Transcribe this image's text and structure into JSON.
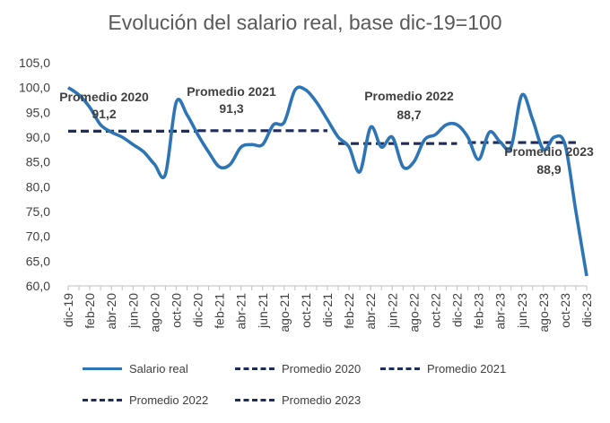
{
  "chart_data": {
    "type": "line",
    "title": "Evolución del salario real, base dic-19=100",
    "ylim": [
      60,
      105
    ],
    "yticks": [
      "60,0",
      "65,0",
      "70,0",
      "75,0",
      "80,0",
      "85,0",
      "90,0",
      "95,0",
      "100,0",
      "105,0"
    ],
    "xticks": [
      "dic-19",
      "feb-20",
      "abr-20",
      "jun-20",
      "ago-20",
      "oct-20",
      "dic-20",
      "feb-21",
      "abr-21",
      "jun-21",
      "ago-21",
      "oct-21",
      "dic-21",
      "feb-22",
      "abr-22",
      "jun-22",
      "ago-22",
      "oct-22",
      "dic-22",
      "feb-23",
      "abr-23",
      "jun-23",
      "ago-23",
      "oct-23",
      "dic-23"
    ],
    "x": [
      "dic-19",
      "ene-20",
      "feb-20",
      "mar-20",
      "abr-20",
      "may-20",
      "jun-20",
      "jul-20",
      "ago-20",
      "sep-20",
      "oct-20",
      "nov-20",
      "dic-20",
      "ene-21",
      "feb-21",
      "mar-21",
      "abr-21",
      "may-21",
      "jun-21",
      "jul-21",
      "ago-21",
      "sep-21",
      "oct-21",
      "nov-21",
      "dic-21",
      "ene-22",
      "feb-22",
      "mar-22",
      "abr-22",
      "may-22",
      "jun-22",
      "jul-22",
      "ago-22",
      "sep-22",
      "oct-22",
      "nov-22",
      "dic-22",
      "ene-23",
      "feb-23",
      "mar-23",
      "abr-23",
      "may-23",
      "jun-23",
      "jul-23",
      "ago-23",
      "sep-23",
      "oct-23",
      "nov-23",
      "dic-23"
    ],
    "series": [
      {
        "name": "Salario real",
        "color": "#2e75b6",
        "style": "solid",
        "values": [
          100.0,
          98.5,
          96.0,
          92.5,
          91.0,
          90.0,
          88.5,
          87.0,
          84.5,
          82.5,
          97.0,
          94.5,
          90.5,
          87.0,
          84.0,
          84.5,
          88.0,
          88.5,
          88.5,
          92.5,
          93.0,
          99.5,
          99.5,
          97.0,
          93.5,
          90.0,
          88.0,
          83.0,
          92.0,
          88.0,
          90.0,
          84.0,
          85.0,
          89.5,
          90.5,
          92.5,
          92.5,
          90.0,
          85.5,
          91.0,
          89.0,
          88.0,
          98.5,
          93.5,
          87.5,
          90.0,
          88.5,
          75.0,
          62.0
        ]
      },
      {
        "name": "Promedio 2020",
        "color": "#1f2d5c",
        "style": "dashed",
        "value": 91.2,
        "from": "dic-19",
        "to": "dic-20"
      },
      {
        "name": "Promedio 2021",
        "color": "#1f2d5c",
        "style": "dashed",
        "value": 91.3,
        "from": "dic-20",
        "to": "dic-21"
      },
      {
        "name": "Promedio 2022",
        "color": "#1f2d5c",
        "style": "dashed",
        "value": 88.7,
        "from": "ene-22",
        "to": "dic-22"
      },
      {
        "name": "Promedio 2023",
        "color": "#1f2d5c",
        "style": "dashed",
        "value": 88.9,
        "from": "ene-23",
        "to": "nov-23"
      }
    ],
    "annotations": [
      {
        "label": "Promedio 2020",
        "value": "91,2"
      },
      {
        "label": "Promedio 2021",
        "value": "91,3"
      },
      {
        "label": "Promedio 2022",
        "value": "88,7"
      },
      {
        "label": "Promedio 2023",
        "value": "88,9"
      }
    ],
    "legend": [
      "Salario real",
      "Promedio 2020",
      "Promedio 2021",
      "Promedio 2022",
      "Promedio 2023"
    ],
    "legend_position": "bottom",
    "grid": false
  }
}
